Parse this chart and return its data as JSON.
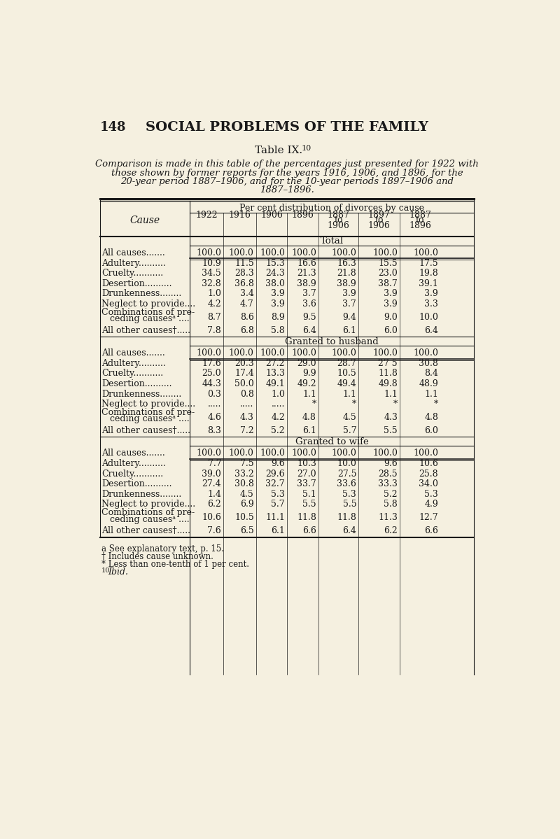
{
  "page_num": "148",
  "page_title": "SOCIAL PROBLEMS OF THE FAMILY",
  "table_title": "Table IX.",
  "table_superscript": "10",
  "subtitle_lines": [
    "Comparison is made in this table of the percentages just presented for 1922 with",
    "those shown by former reports for the years 1916, 1906, and 1896, for the",
    "20-year period 1887–1906, and for the 10-year periods 1897–1906 and",
    "1887–1896."
  ],
  "col_header_main": "Per cent distribution of divorces by cause",
  "col_header_cause": "Cause",
  "col_headers": [
    "1922",
    "1916",
    "1906",
    "1896",
    "1887\nto\n1906",
    "1897\nto\n1906",
    "1887\nto\n1896"
  ],
  "section_total": "Total",
  "section_husband": "Granted to husband",
  "section_wife": "Granted to wife",
  "rows_total": [
    [
      "All causes.......",
      "100.0",
      "100.0",
      "100.0",
      "100.0",
      "100.0",
      "100.0",
      "100.0"
    ],
    [
      "Adultery..........",
      "10.9",
      "11.5",
      "15.3",
      "16.6",
      "16.3",
      "15.5",
      "17.5"
    ],
    [
      "Cruelty...........",
      "34.5",
      "28.3",
      "24.3",
      "21.3",
      "21.8",
      "23.0",
      "19.8"
    ],
    [
      "Desertion..........",
      "32.8",
      "36.8",
      "38.0",
      "38.9",
      "38.9",
      "38.7",
      "39.1"
    ],
    [
      "Drunkenness........",
      "1.0",
      "3.4",
      "3.9",
      "3.7",
      "3.9",
      "3.9",
      "3.9"
    ],
    [
      "Neglect to provide....",
      "4.2",
      "4.7",
      "3.9",
      "3.6",
      "3.7",
      "3.9",
      "3.3"
    ],
    [
      "Combinations of pre-\n   ceding causesᵃ ....",
      "8.7",
      "8.6",
      "8.9",
      "9.5",
      "9.4",
      "9.0",
      "10.0"
    ],
    [
      "All other causes†.....",
      "7.8",
      "6.8",
      "5.8",
      "6.4",
      "6.1",
      "6.0",
      "6.4"
    ]
  ],
  "rows_husband": [
    [
      "All causes.......",
      "100.0",
      "100.0",
      "100.0",
      "100.0",
      "100.0",
      "100.0",
      "100.0"
    ],
    [
      "Adultery..........",
      "17.6",
      "20.3",
      "27.2",
      "29.0",
      "28.7",
      "27 5",
      "30.8"
    ],
    [
      "Cruelty...........",
      "25.0",
      "17.4",
      "13.3",
      "9.9",
      "10.5",
      "11.8",
      "8.4"
    ],
    [
      "Desertion..........",
      "44.3",
      "50.0",
      "49.1",
      "49.2",
      "49.4",
      "49.8",
      "48.9"
    ],
    [
      "Drunkenness........",
      "0.3",
      "0.8",
      "1.0",
      "1.1",
      "1.1",
      "1.1",
      "1.1"
    ],
    [
      "Neglect to provide....",
      ".....",
      ".....",
      ".....",
      "*",
      "*",
      "*",
      "*"
    ],
    [
      "Combinations of pre-\n   ceding causesᵃ ....",
      "4.6",
      "4.3",
      "4.2",
      "4.8",
      "4.5",
      "4.3",
      "4.8"
    ],
    [
      "All other causes†.....",
      "8.3",
      "7.2",
      "5.2",
      "6.1",
      "5.7",
      "5.5",
      "6.0"
    ]
  ],
  "rows_wife": [
    [
      "All causes.......",
      "100.0",
      "100.0",
      "100.0",
      "100.0",
      "100.0",
      "100.0",
      "100.0"
    ],
    [
      "Adultery..........",
      "7.7",
      "7.5",
      "9.6",
      "10.3",
      "10.0",
      "9.6",
      "10.6"
    ],
    [
      "Cruelty...........",
      "39.0",
      "33.2",
      "29.6",
      "27.0",
      "27.5",
      "28.5",
      "25.8"
    ],
    [
      "Desertion..........",
      "27.4",
      "30.8",
      "32.7",
      "33.7",
      "33.6",
      "33.3",
      "34.0"
    ],
    [
      "Drunkenness........",
      "1.4",
      "4.5",
      "5.3",
      "5.1",
      "5.3",
      "5.2",
      "5.3"
    ],
    [
      "Neglect to provide....",
      "6.2",
      "6.9",
      "5.7",
      "5.5",
      "5.5",
      "5.8",
      "4.9"
    ],
    [
      "Combinations of pre-\n   ceding causesᵃ ....",
      "10.6",
      "10.5",
      "11.1",
      "11.8",
      "11.8",
      "11.3",
      "12.7"
    ],
    [
      "All other causes†.....",
      "7.6",
      "6.5",
      "6.1",
      "6.6",
      "6.4",
      "6.2",
      "6.6"
    ]
  ],
  "footnotes": [
    "a See explanatory text, p. 15.",
    "† Includes cause unknown.",
    "* Less than one-tenth of 1 per cent.",
    "10 Ibid."
  ],
  "bg_color": "#f5f0e0",
  "text_color": "#1a1a1a"
}
